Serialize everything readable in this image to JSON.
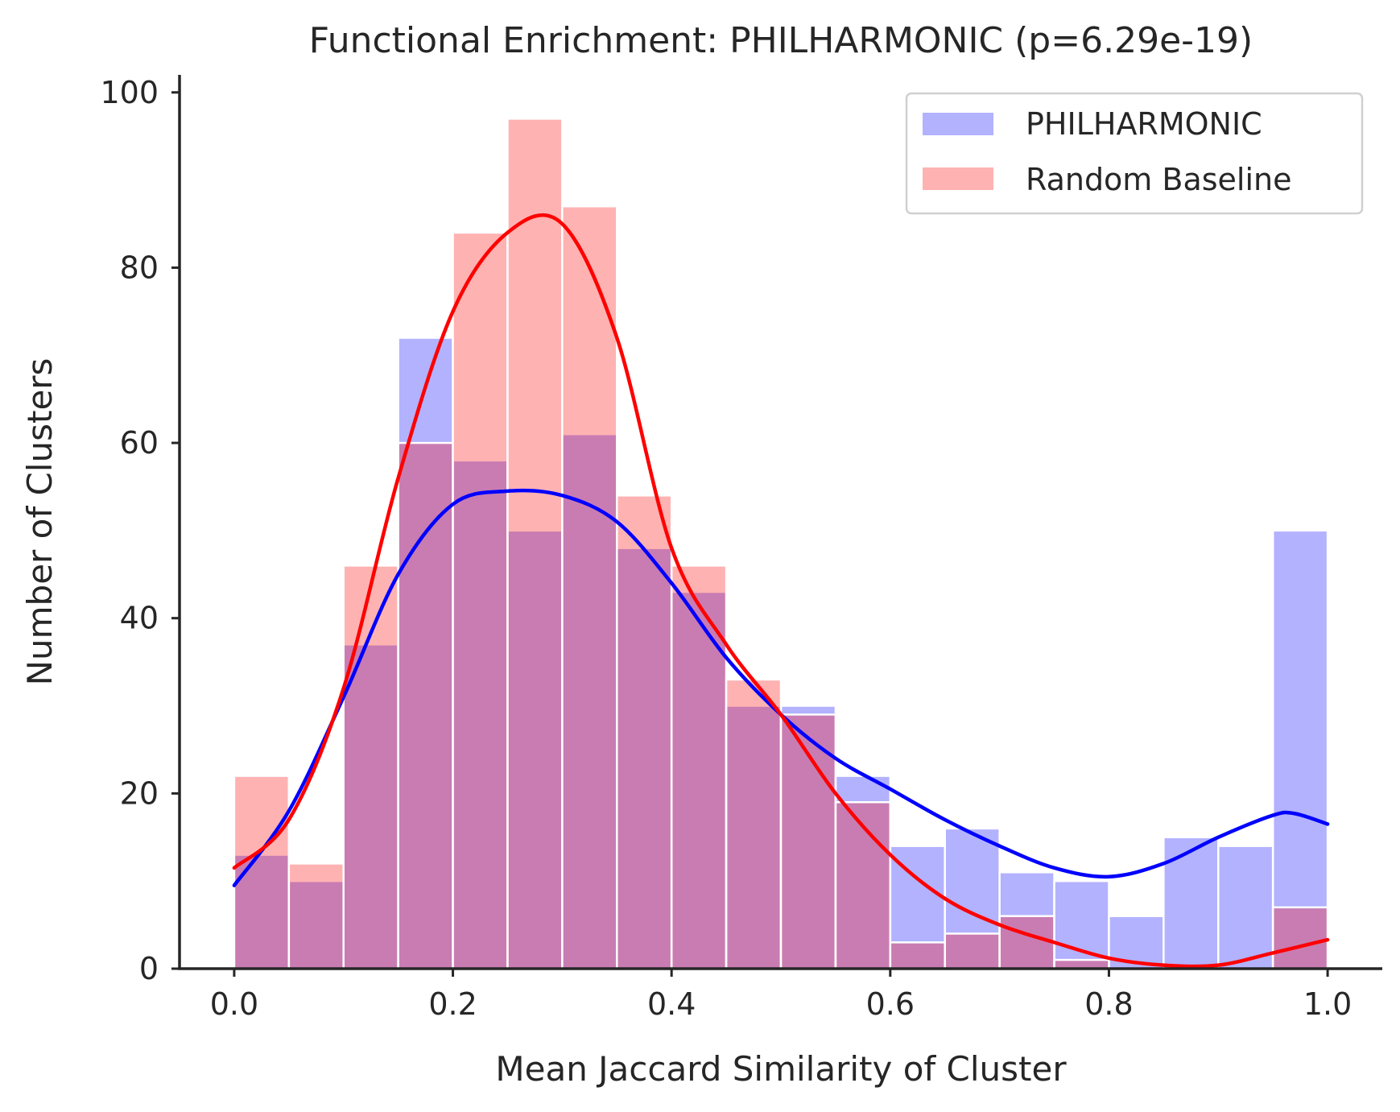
{
  "chart_data": {
    "type": "bar",
    "title": "Functional Enrichment: PHILHARMONIC (p=6.29e-19)",
    "xlabel": "Mean Jaccard Similarity of Cluster",
    "ylabel": "Number of Clusters",
    "xlim": [
      -0.05,
      1.05
    ],
    "ylim": [
      0,
      102
    ],
    "xticks": [
      0.0,
      0.2,
      0.4,
      0.6,
      0.8,
      1.0
    ],
    "xtick_labels": [
      "0.0",
      "0.2",
      "0.4",
      "0.6",
      "0.8",
      "1.0"
    ],
    "yticks": [
      0,
      20,
      40,
      60,
      80,
      100
    ],
    "ytick_labels": [
      "0",
      "20",
      "40",
      "60",
      "80",
      "100"
    ],
    "grid": false,
    "legend_position": "top-right",
    "bin_edges": [
      0.0,
      0.05,
      0.1,
      0.15,
      0.2,
      0.25,
      0.3,
      0.35,
      0.4,
      0.45,
      0.5,
      0.55,
      0.6,
      0.65,
      0.7,
      0.75,
      0.8,
      0.85,
      0.9,
      0.95,
      1.0
    ],
    "series": [
      {
        "name": "PHILHARMONIC",
        "color": "#0000ff",
        "values": [
          13,
          10,
          37,
          72,
          58,
          50,
          61,
          48,
          43,
          30,
          30,
          22,
          14,
          16,
          11,
          10,
          6,
          15,
          14,
          50
        ],
        "kde": {
          "x": [
            0.0,
            0.05,
            0.1,
            0.15,
            0.2,
            0.25,
            0.3,
            0.35,
            0.4,
            0.45,
            0.5,
            0.55,
            0.6,
            0.65,
            0.7,
            0.75,
            0.8,
            0.85,
            0.9,
            0.95,
            0.97,
            1.0
          ],
          "y": [
            9.5,
            18,
            31,
            45,
            53,
            54.5,
            54,
            51,
            44,
            35.5,
            29,
            24,
            20.5,
            17,
            14,
            11.5,
            10.5,
            12,
            15,
            17.5,
            17.7,
            16.5
          ]
        }
      },
      {
        "name": "Random Baseline",
        "color": "#ff0000",
        "values": [
          22,
          12,
          46,
          60,
          84,
          97,
          87,
          54,
          46,
          33,
          29,
          19,
          3,
          4,
          6,
          1,
          0,
          0,
          0,
          7
        ],
        "kde": {
          "x": [
            0.0,
            0.05,
            0.1,
            0.15,
            0.2,
            0.25,
            0.3,
            0.35,
            0.4,
            0.45,
            0.5,
            0.55,
            0.6,
            0.65,
            0.7,
            0.75,
            0.8,
            0.85,
            0.9,
            0.95,
            1.0
          ],
          "y": [
            11.5,
            17,
            32,
            56,
            75,
            84,
            85,
            72,
            48,
            37,
            29,
            20,
            13,
            8,
            5,
            3,
            1.2,
            0.4,
            0.4,
            1.8,
            3.3
          ]
        }
      }
    ]
  }
}
